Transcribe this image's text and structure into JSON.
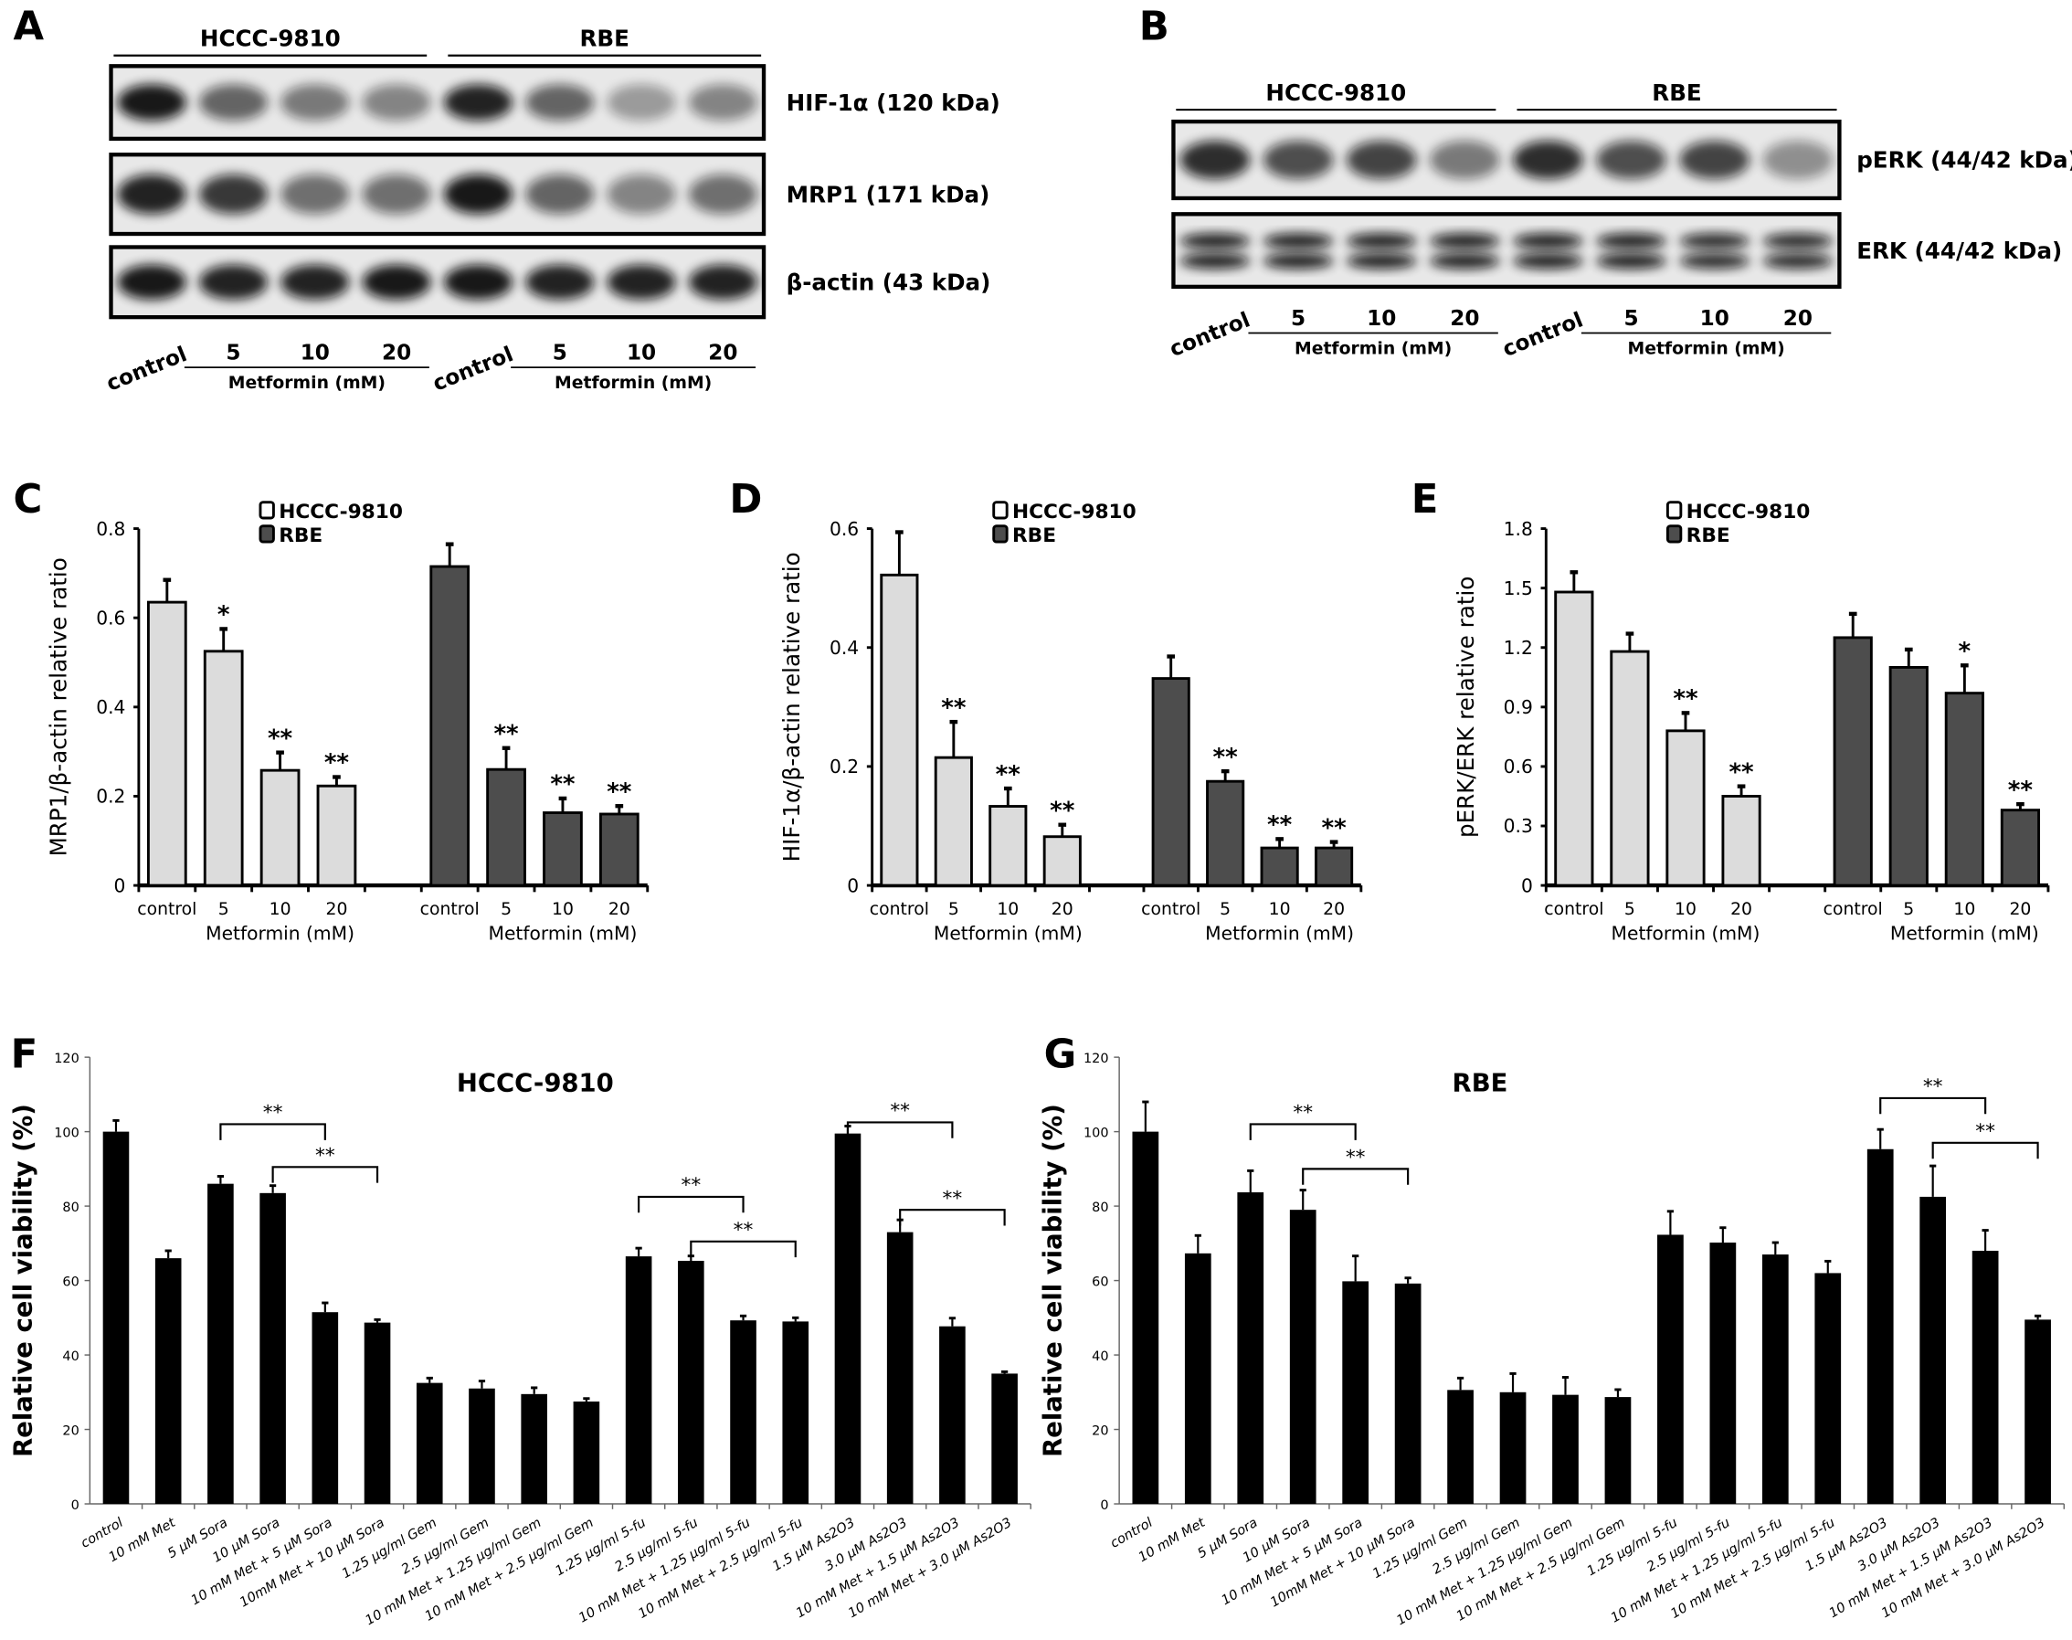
{
  "panel_labels": [
    "A",
    "B",
    "C",
    "D",
    "E",
    "F",
    "G"
  ],
  "blots": {
    "A": {
      "cell_lines": [
        "HCCC-9810",
        "RBE"
      ],
      "bands": [
        "HIF-1α (120 kDa)",
        "MRP1 (171 kDa)",
        "β-actin (43 kDa)"
      ],
      "lanes": [
        "control",
        "5",
        "10",
        "20"
      ],
      "treatment": "Metformin (mM)"
    },
    "B": {
      "cell_lines": [
        "HCCC-9810",
        "RBE"
      ],
      "bands": [
        "pERK (44/42 kDa)",
        "ERK (44/42 kDa)"
      ],
      "lanes": [
        "control",
        "5",
        "10",
        "20"
      ],
      "treatment": "Metformin (mM)"
    }
  },
  "colors": {
    "hccc": "#dcdcdc",
    "rbe": "#4d4d4d",
    "viability": "#000000"
  },
  "chart_data": [
    {
      "panel": "C",
      "type": "bar",
      "ylabel": "MRP1/β-actin relative ratio",
      "xlabel": "Metformin (mM)",
      "categories": [
        "control",
        "5",
        "10",
        "20"
      ],
      "ylim": [
        0,
        0.8
      ],
      "yticks": [
        "0",
        "0.2",
        "0.4",
        "0.6",
        "0.8"
      ],
      "legend": "top",
      "series": [
        {
          "name": "HCCC-9810",
          "values": [
            0.635,
            0.525,
            0.258,
            0.223
          ],
          "errors": [
            0.05,
            0.05,
            0.04,
            0.02
          ],
          "sig": [
            "",
            "*",
            "**",
            "**"
          ]
        },
        {
          "name": "RBE",
          "values": [
            0.715,
            0.26,
            0.163,
            0.16
          ],
          "errors": [
            0.05,
            0.048,
            0.032,
            0.018
          ],
          "sig": [
            "",
            "**",
            "**",
            "**"
          ]
        }
      ]
    },
    {
      "panel": "D",
      "type": "bar",
      "ylabel": "HIF-1α/β-actin relative ratio",
      "xlabel": "Metformin (mM)",
      "categories": [
        "control",
        "5",
        "10",
        "20"
      ],
      "ylim": [
        0,
        0.6
      ],
      "yticks": [
        "0",
        "0.2",
        "0.4",
        "0.6"
      ],
      "legend": "top",
      "series": [
        {
          "name": "HCCC-9810",
          "values": [
            0.522,
            0.215,
            0.133,
            0.082
          ],
          "errors": [
            0.072,
            0.06,
            0.03,
            0.02
          ],
          "sig": [
            "",
            "**",
            "**",
            "**"
          ]
        },
        {
          "name": "RBE",
          "values": [
            0.348,
            0.175,
            0.063,
            0.063
          ],
          "errors": [
            0.037,
            0.017,
            0.015,
            0.01
          ],
          "sig": [
            "",
            "**",
            "**",
            "**"
          ]
        }
      ]
    },
    {
      "panel": "E",
      "type": "bar",
      "ylabel": "pERK/ERK relative ratio",
      "xlabel": "Metformin (mM)",
      "categories": [
        "control",
        "5",
        "10",
        "20"
      ],
      "ylim": [
        0,
        1.8
      ],
      "yticks": [
        "0",
        "0.3",
        "0.6",
        "0.9",
        "1.2",
        "1.5",
        "1.8"
      ],
      "legend": "top",
      "series": [
        {
          "name": "HCCC-9810",
          "values": [
            1.48,
            1.18,
            0.78,
            0.45
          ],
          "errors": [
            0.1,
            0.09,
            0.09,
            0.05
          ],
          "sig": [
            "",
            "",
            "**",
            "**"
          ]
        },
        {
          "name": "RBE",
          "values": [
            1.25,
            1.1,
            0.97,
            0.38
          ],
          "errors": [
            0.12,
            0.09,
            0.14,
            0.03
          ],
          "sig": [
            "",
            "",
            "*",
            "**"
          ]
        }
      ]
    },
    {
      "panel": "F",
      "type": "bar",
      "title": "HCCC-9810",
      "ylabel": "Relative cell viability (%)",
      "ylim": [
        0,
        120
      ],
      "yticks": [
        "0",
        "20",
        "40",
        "60",
        "80",
        "100",
        "120"
      ],
      "categories": [
        "control",
        "10 mM Met",
        "5 μM Sora",
        "10 μM Sora",
        "10 mM Met + 5 μM Sora",
        "10mM Met + 10 μM Sora",
        "1.25 μg/ml Gem",
        "2.5 μg/ml Gem",
        "10 mM Met + 1.25 μg/ml Gem",
        "10 mM Met + 2.5 μg/ml Gem",
        "1.25 μg/ml 5-fu",
        "2.5 μg/ml 5-fu",
        "10 mM Met + 1.25 μg/ml 5-fu",
        "10 mM Met + 2.5 μg/ml 5-fu",
        "1.5 μM As2O3",
        "3.0 μM As2O3",
        "10 mM Met + 1.5 μM As2O3",
        "10 mM Met + 3.0 μM As2O3"
      ],
      "values": [
        100,
        66,
        86,
        83.5,
        51.5,
        48.7,
        32.5,
        31,
        29.5,
        27.5,
        66.5,
        65.3,
        49.3,
        49,
        99.5,
        73,
        47.7,
        35
      ],
      "errors": [
        3,
        2,
        2,
        2,
        2.5,
        0.8,
        1.3,
        2,
        1.7,
        0.8,
        2.2,
        1.3,
        1.2,
        1,
        2,
        3.3,
        2.2,
        0.5
      ],
      "brackets": [
        {
          "from": "5 μM Sora",
          "to": "10 mM Met + 5 μM Sora",
          "label": "**"
        },
        {
          "from": "10 μM Sora",
          "to": "10mM Met + 10 μM Sora",
          "label": "**"
        },
        {
          "from": "1.25 μg/ml 5-fu",
          "to": "10 mM Met + 1.25 μg/ml 5-fu",
          "label": "**"
        },
        {
          "from": "2.5 μg/ml 5-fu",
          "to": "10 mM Met + 2.5 μg/ml 5-fu",
          "label": "**"
        },
        {
          "from": "1.5 μM As2O3",
          "to": "10 mM Met + 1.5 μM As2O3",
          "label": "**"
        },
        {
          "from": "3.0 μM As2O3",
          "to": "10 mM Met + 3.0 μM As2O3",
          "label": "**"
        }
      ],
      "bracket_y": [
        102,
        90.5,
        82.5,
        70.5,
        102.5,
        79
      ]
    },
    {
      "panel": "G",
      "type": "bar",
      "title": "RBE",
      "ylabel": "Relative cell viability (%)",
      "ylim": [
        0,
        120
      ],
      "yticks": [
        "0",
        "20",
        "40",
        "60",
        "80",
        "100",
        "120"
      ],
      "categories": [
        "control",
        "10 mM Met",
        "5 μM Sora",
        "10 μM Sora",
        "10 mM Met + 5 μM Sora",
        "10mM Met + 10 μM Sora",
        "1.25 μg/ml Gem",
        "2.5 μg/ml Gem",
        "10 mM Met + 1.25 μg/ml Gem",
        "10 mM Met + 2.5 μg/ml Gem",
        "1.25 μg/ml 5-fu",
        "2.5 μg/ml 5-fu",
        "10 mM Met + 1.25 μg/ml 5-fu",
        "10 mM Met + 2.5 μg/ml 5-fu",
        "1.5 μM As2O3",
        "3.0 μM As2O3",
        "10 mM Met + 1.5 μM As2O3",
        "10 mM Met + 3.0 μM As2O3"
      ],
      "values": [
        100,
        67.3,
        83.7,
        79,
        59.8,
        59.2,
        30.6,
        30,
        29.3,
        28.7,
        72.3,
        70.2,
        67,
        62,
        95.3,
        82.5,
        68,
        49.5
      ],
      "errors": [
        8,
        4.8,
        5.8,
        5.3,
        6.8,
        1.5,
        3.2,
        5,
        4.7,
        2,
        6.3,
        4,
        3.2,
        3.2,
        5.3,
        8.3,
        5.5,
        1
      ],
      "brackets": [
        {
          "from": "5 μM Sora",
          "to": "10 mM Met + 5 μM Sora",
          "label": "**"
        },
        {
          "from": "10 μM Sora",
          "to": "10mM Met + 10 μM Sora",
          "label": "**"
        },
        {
          "from": "1.5 μM As2O3",
          "to": "10 mM Met + 1.5 μM As2O3",
          "label": "**"
        },
        {
          "from": "3.0 μM As2O3",
          "to": "10 mM Met + 3.0 μM As2O3",
          "label": "**"
        }
      ],
      "bracket_y": [
        102,
        90,
        109,
        97
      ]
    }
  ]
}
